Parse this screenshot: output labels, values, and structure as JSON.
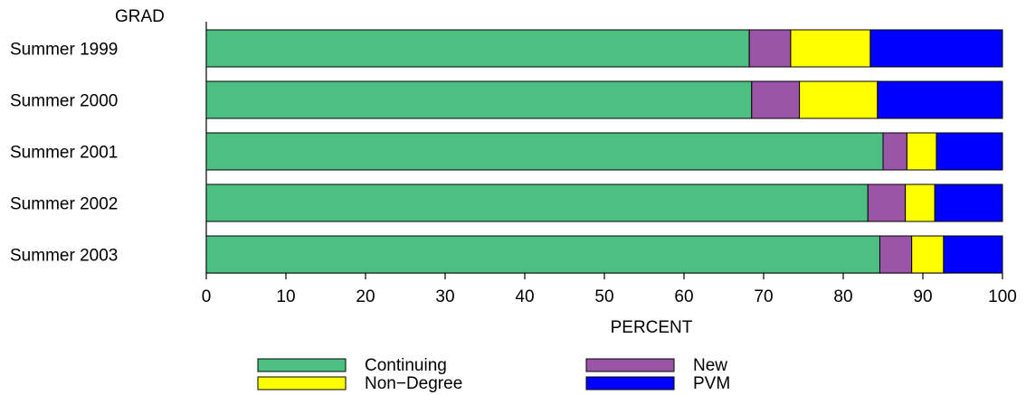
{
  "chart_data": {
    "type": "bar",
    "orientation": "horizontal",
    "stacked": true,
    "ylabel": "GRAD",
    "xlabel": "PERCENT",
    "categories": [
      "Summer 1999",
      "Summer 2000",
      "Summer 2001",
      "Summer 2002",
      "Summer 2003"
    ],
    "xlim": [
      0,
      100
    ],
    "xticks": [
      "0",
      "10",
      "20",
      "30",
      "40",
      "50",
      "60",
      "70",
      "80",
      "90",
      "100"
    ],
    "series": [
      {
        "name": "Continuing",
        "color": "#4dbf82",
        "values": [
          68.2,
          68.5,
          85.0,
          83.1,
          84.6
        ]
      },
      {
        "name": "New",
        "color": "#9b55a8",
        "values": [
          5.2,
          6.0,
          3.0,
          4.7,
          4.0
        ]
      },
      {
        "name": "Non−Degree",
        "color": "#ffff00",
        "values": [
          10.0,
          9.8,
          3.7,
          3.7,
          4.0
        ]
      },
      {
        "name": "PVM",
        "color": "#0000ff",
        "values": [
          16.6,
          15.7,
          8.3,
          8.5,
          7.4
        ]
      }
    ],
    "legend": {
      "position": "bottom",
      "order": [
        "Continuing",
        "New",
        "Non−Degree",
        "PVM"
      ],
      "labels": [
        "Continuing",
        "New",
        "Non−Degree",
        "PVM"
      ]
    },
    "grid": false
  }
}
